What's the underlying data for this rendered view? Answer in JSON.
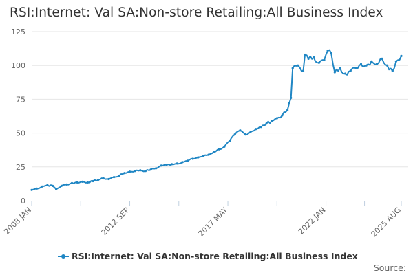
{
  "chart_data": {
    "type": "line",
    "title": "RSI:Internet: Val SA:Non-store Retailing:All Business Index",
    "xlabel": "",
    "ylabel": "",
    "x_range": [
      "2008 JAN",
      "2025 AUG"
    ],
    "x_tick_labels": [
      "2008 JAN",
      "2012 SEP",
      "2017 MAY",
      "2022 JAN",
      "2025 AUG"
    ],
    "y_ticks": [
      0,
      25,
      50,
      75,
      100,
      125
    ],
    "ylim": [
      0,
      125
    ],
    "grid": "horizontal",
    "legend_position": "bottom",
    "series": [
      {
        "name": "RSI:Internet: Val SA:Non-store Retailing:All Business Index",
        "color": "#1f86c4",
        "points": [
          [
            "2008-01",
            8.0
          ],
          [
            "2008-04",
            9.0
          ],
          [
            "2008-07",
            10.5
          ],
          [
            "2008-10",
            11.5
          ],
          [
            "2009-01",
            11.0
          ],
          [
            "2009-03",
            8.5
          ],
          [
            "2009-06",
            11.0
          ],
          [
            "2009-09",
            12.0
          ],
          [
            "2009-12",
            13.0
          ],
          [
            "2010-03",
            13.5
          ],
          [
            "2010-06",
            14.0
          ],
          [
            "2010-09",
            13.5
          ],
          [
            "2010-12",
            14.5
          ],
          [
            "2011-03",
            15.5
          ],
          [
            "2011-06",
            16.5
          ],
          [
            "2011-09",
            16.0
          ],
          [
            "2011-12",
            17.5
          ],
          [
            "2012-03",
            18.5
          ],
          [
            "2012-06",
            20.5
          ],
          [
            "2012-09",
            21.5
          ],
          [
            "2012-12",
            22.0
          ],
          [
            "2013-03",
            22.5
          ],
          [
            "2013-06",
            22.0
          ],
          [
            "2013-09",
            23.0
          ],
          [
            "2013-12",
            24.0
          ],
          [
            "2014-03",
            26.0
          ],
          [
            "2014-06",
            26.5
          ],
          [
            "2014-09",
            27.0
          ],
          [
            "2014-12",
            27.5
          ],
          [
            "2015-03",
            28.5
          ],
          [
            "2015-06",
            29.5
          ],
          [
            "2015-09",
            31.0
          ],
          [
            "2015-12",
            32.0
          ],
          [
            "2016-03",
            33.0
          ],
          [
            "2016-06",
            34.0
          ],
          [
            "2016-09",
            36.0
          ],
          [
            "2016-12",
            38.0
          ],
          [
            "2017-03",
            40.0
          ],
          [
            "2017-06",
            44.0
          ],
          [
            "2017-09",
            49.0
          ],
          [
            "2017-12",
            52.0
          ],
          [
            "2018-03",
            49.0
          ],
          [
            "2018-06",
            51.0
          ],
          [
            "2018-09",
            53.0
          ],
          [
            "2018-12",
            54.5
          ],
          [
            "2019-03",
            57.0
          ],
          [
            "2019-06",
            59.0
          ],
          [
            "2019-09",
            61.0
          ],
          [
            "2019-12",
            63.0
          ],
          [
            "2020-03",
            67.0
          ],
          [
            "2020-04",
            72.0
          ],
          [
            "2020-05",
            76.0
          ],
          [
            "2020-06",
            98.0
          ],
          [
            "2020-09",
            100.0
          ],
          [
            "2020-12",
            96.0
          ],
          [
            "2021-01",
            108.0
          ],
          [
            "2021-03",
            105.0
          ],
          [
            "2021-06",
            106.0
          ],
          [
            "2021-09",
            102.0
          ],
          [
            "2021-12",
            104.0
          ],
          [
            "2022-02",
            111.0
          ],
          [
            "2022-04",
            109.0
          ],
          [
            "2022-06",
            95.0
          ],
          [
            "2022-09",
            98.0
          ],
          [
            "2022-12",
            94.0
          ],
          [
            "2023-03",
            96.0
          ],
          [
            "2023-06",
            98.0
          ],
          [
            "2023-09",
            101.0
          ],
          [
            "2023-12",
            100.0
          ],
          [
            "2024-03",
            103.0
          ],
          [
            "2024-06",
            101.0
          ],
          [
            "2024-09",
            105.0
          ],
          [
            "2024-12",
            100.0
          ],
          [
            "2025-03",
            96.0
          ],
          [
            "2025-05",
            103.0
          ],
          [
            "2025-08",
            107.0
          ]
        ]
      }
    ]
  },
  "legend": {
    "label": "RSI:Internet: Val SA:Non-store Retailing:All Business Index"
  },
  "credit": {
    "label": "Source:"
  }
}
